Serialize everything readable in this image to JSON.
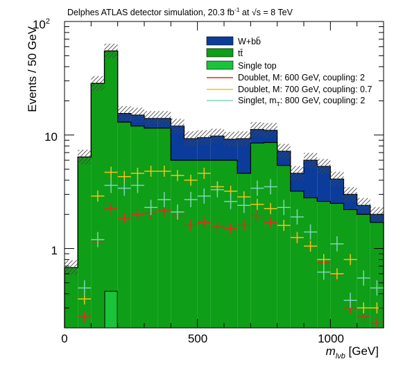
{
  "chart_data": {
    "type": "bar",
    "title": "Delphes ATLAS detector simulation, 20.3 fb",
    "title_sup": "-1",
    "title_at": " at ",
    "title_sqrt": "√s = 8 TeV",
    "xlabel_m": "m",
    "xlabel_sub": "lνb",
    "xlabel_unit": " [GeV]",
    "ylabel": "Events / 50 GeV",
    "xlim": [
      0,
      1200
    ],
    "ylim": [
      0.2,
      100
    ],
    "log_y": true,
    "x_ticks": [
      "0",
      "500",
      "1000"
    ],
    "y_ticks": [
      "1",
      "10",
      "10"
    ],
    "y_tick_sup": "2",
    "bin_edges": [
      0,
      50,
      100,
      150,
      200,
      250,
      300,
      350,
      400,
      450,
      500,
      550,
      600,
      650,
      700,
      750,
      800,
      850,
      900,
      950,
      1000,
      1050,
      1100,
      1150,
      1200
    ],
    "stack": {
      "single_top": [
        0,
        0,
        0,
        0.42,
        0,
        0,
        0,
        0,
        0,
        0,
        0,
        0,
        0,
        0,
        0,
        0,
        0,
        0,
        0,
        0,
        0,
        0,
        0,
        0
      ],
      "ttbar": [
        0.68,
        6.4,
        28.5,
        55.0,
        13.0,
        12.0,
        11.5,
        11.5,
        6.0,
        6.0,
        6.0,
        6.0,
        6.0,
        4.6,
        8.5,
        8.6,
        5.4,
        3.2,
        2.8,
        2.6,
        2.5,
        2.2,
        2.0,
        1.7
      ],
      "total": [
        0.68,
        6.4,
        28.5,
        55.0,
        15.5,
        15.0,
        14.0,
        14.0,
        12.0,
        9.3,
        9.5,
        9.8,
        9.2,
        9.3,
        11.2,
        11.0,
        7.2,
        4.6,
        6.0,
        5.3,
        4.1,
        3.0,
        2.4,
        2.0
      ]
    },
    "series": [
      {
        "name": "Doublet, M: 600 GeV, coupling: 2",
        "x": [
          75,
          125,
          175,
          225,
          275,
          325,
          375,
          425,
          475,
          525,
          575,
          625,
          675,
          725,
          775,
          825,
          875,
          925,
          975,
          1025,
          1075,
          1125,
          1175
        ],
        "y": [
          0.25,
          1.15,
          2.25,
          1.85,
          2.0,
          2.05,
          2.15,
          1.95,
          1.6,
          1.7,
          1.55,
          1.5,
          1.6,
          1.95,
          1.7,
          1.6,
          1.25,
          1.05,
          0.75,
          0.58,
          0.3,
          0.25,
          0.22
        ]
      },
      {
        "name": "Doublet, M: 700 GeV, coupling: 0.7",
        "x": [
          75,
          125,
          175,
          225,
          275,
          325,
          375,
          425,
          475,
          525,
          575,
          625,
          675,
          725,
          775,
          825,
          875,
          925,
          975,
          1025,
          1075,
          1125,
          1175
        ],
        "y": [
          0.36,
          2.9,
          4.7,
          4.3,
          4.6,
          4.8,
          4.8,
          4.4,
          4.0,
          4.6,
          3.5,
          3.2,
          2.85,
          2.45,
          2.25,
          1.6,
          1.25,
          1.05,
          0.8,
          0.6,
          0.8,
          0.3,
          0.3
        ]
      },
      {
        "name": "Singlet, m: 800 GeV, coupling: 2",
        "name_prefix": "Singlet, m",
        "name_sub": "T",
        "name_suffix": ": 800 GeV, coupling: 2",
        "x": [
          75,
          125,
          175,
          225,
          275,
          325,
          375,
          425,
          475,
          525,
          575,
          625,
          675,
          725,
          775,
          825,
          875,
          925,
          975,
          1025,
          1075,
          1125,
          1175
        ],
        "y": [
          0.45,
          1.2,
          3.6,
          3.4,
          3.6,
          2.3,
          2.7,
          2.1,
          2.7,
          2.9,
          3.3,
          2.6,
          2.4,
          3.4,
          3.5,
          2.3,
          1.9,
          1.4,
          0.62,
          1.1,
          0.35,
          0.55,
          0.45
        ]
      }
    ],
    "legend": [
      {
        "label": "W+bb̄",
        "color": "#0b3c9c",
        "style": "fill"
      },
      {
        "label": "tt̄",
        "color": "#0f9e17",
        "style": "fill"
      },
      {
        "label": "Single top",
        "color": "#19c33a",
        "style": "fill"
      },
      {
        "label": "Doublet, M: 600 GeV, coupling: 2",
        "color": "#e8281c",
        "style": "line"
      },
      {
        "label": "Doublet, M: 700 GeV, coupling: 0.7",
        "color": "#f4c419",
        "style": "line"
      },
      {
        "label": "Singlet, m: 800 GeV, coupling: 2",
        "color": "#7fd6b8",
        "style": "line"
      }
    ],
    "legend_position": "top-right",
    "colors": {
      "wbb": "#0b3c9c",
      "ttbar": "#0f9e17",
      "single_top": "#19c33a",
      "doublet600": "#e8281c",
      "doublet700": "#f4c419",
      "singlet800": "#7fd6b8"
    }
  }
}
